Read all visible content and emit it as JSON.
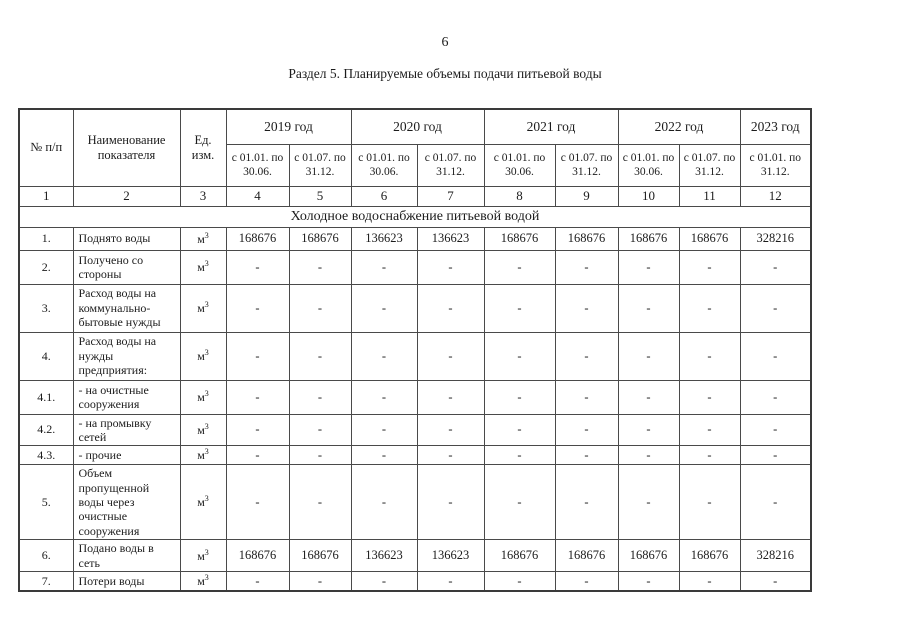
{
  "page": {
    "number": "6",
    "title": "Раздел 5. Планируемые объемы подачи питьевой воды"
  },
  "table": {
    "corner_headers": {
      "num": "№ п/п",
      "name": "Наименование показателя",
      "unit": "Ед. изм."
    },
    "year_groups": [
      {
        "label": "2019 год",
        "periods": [
          "с 01.01. по 30.06.",
          "с 01.07. по 31.12."
        ]
      },
      {
        "label": "2020 год",
        "periods": [
          "с 01.01. по 30.06.",
          "с 01.07. по 31.12."
        ]
      },
      {
        "label": "2021 год",
        "periods": [
          "с 01.01. по 30.06.",
          "с 01.07. по 31.12."
        ]
      },
      {
        "label": "2022 год",
        "periods": [
          "с 01.01. по 30.06.",
          "с 01.07. по 31.12."
        ]
      },
      {
        "label": "2023 год",
        "periods": [
          "с 01.01. по 31.12."
        ]
      }
    ],
    "column_numbers": [
      "1",
      "2",
      "3",
      "4",
      "5",
      "6",
      "7",
      "8",
      "9",
      "10",
      "11",
      "12"
    ],
    "section_title": "Холодное водоснабжение питьевой водой",
    "unit": {
      "base": "м",
      "sup": "3"
    },
    "rows": [
      {
        "num": "1.",
        "name": "Поднято воды",
        "values": [
          "168676",
          "168676",
          "136623",
          "136623",
          "168676",
          "168676",
          "168676",
          "168676",
          "328216"
        ]
      },
      {
        "num": "2.",
        "name": "Получено со стороны",
        "values": [
          "-",
          "-",
          "-",
          "-",
          "-",
          "-",
          "-",
          "-",
          "-"
        ]
      },
      {
        "num": "3.",
        "name": "Расход воды на коммунально-бытовые нужды",
        "values": [
          "-",
          "-",
          "-",
          "-",
          "-",
          "-",
          "-",
          "-",
          "-"
        ]
      },
      {
        "num": "4.",
        "name": "Расход воды на нужды предприятия:",
        "values": [
          "-",
          "-",
          "-",
          "-",
          "-",
          "-",
          "-",
          "-",
          "-"
        ]
      },
      {
        "num": "4.1.",
        "name": "- на очистные сооружения",
        "values": [
          "-",
          "-",
          "-",
          "-",
          "-",
          "-",
          "-",
          "-",
          "-"
        ]
      },
      {
        "num": "4.2.",
        "name": "- на промывку сетей",
        "values": [
          "-",
          "-",
          "-",
          "-",
          "-",
          "-",
          "-",
          "-",
          "-"
        ]
      },
      {
        "num": "4.3.",
        "name": "- прочие",
        "values": [
          "-",
          "-",
          "-",
          "-",
          "-",
          "-",
          "-",
          "-",
          "-"
        ]
      },
      {
        "num": "5.",
        "name": "Объем пропущенной воды через очистные сооружения",
        "values": [
          "-",
          "-",
          "-",
          "-",
          "-",
          "-",
          "-",
          "-",
          "-"
        ]
      },
      {
        "num": "6.",
        "name": "Подано воды в сеть",
        "values": [
          "168676",
          "168676",
          "136623",
          "136623",
          "168676",
          "168676",
          "168676",
          "168676",
          "328216"
        ]
      },
      {
        "num": "7.",
        "name": "Потери воды",
        "values": [
          "-",
          "-",
          "-",
          "-",
          "-",
          "-",
          "-",
          "-",
          "-"
        ]
      }
    ]
  }
}
